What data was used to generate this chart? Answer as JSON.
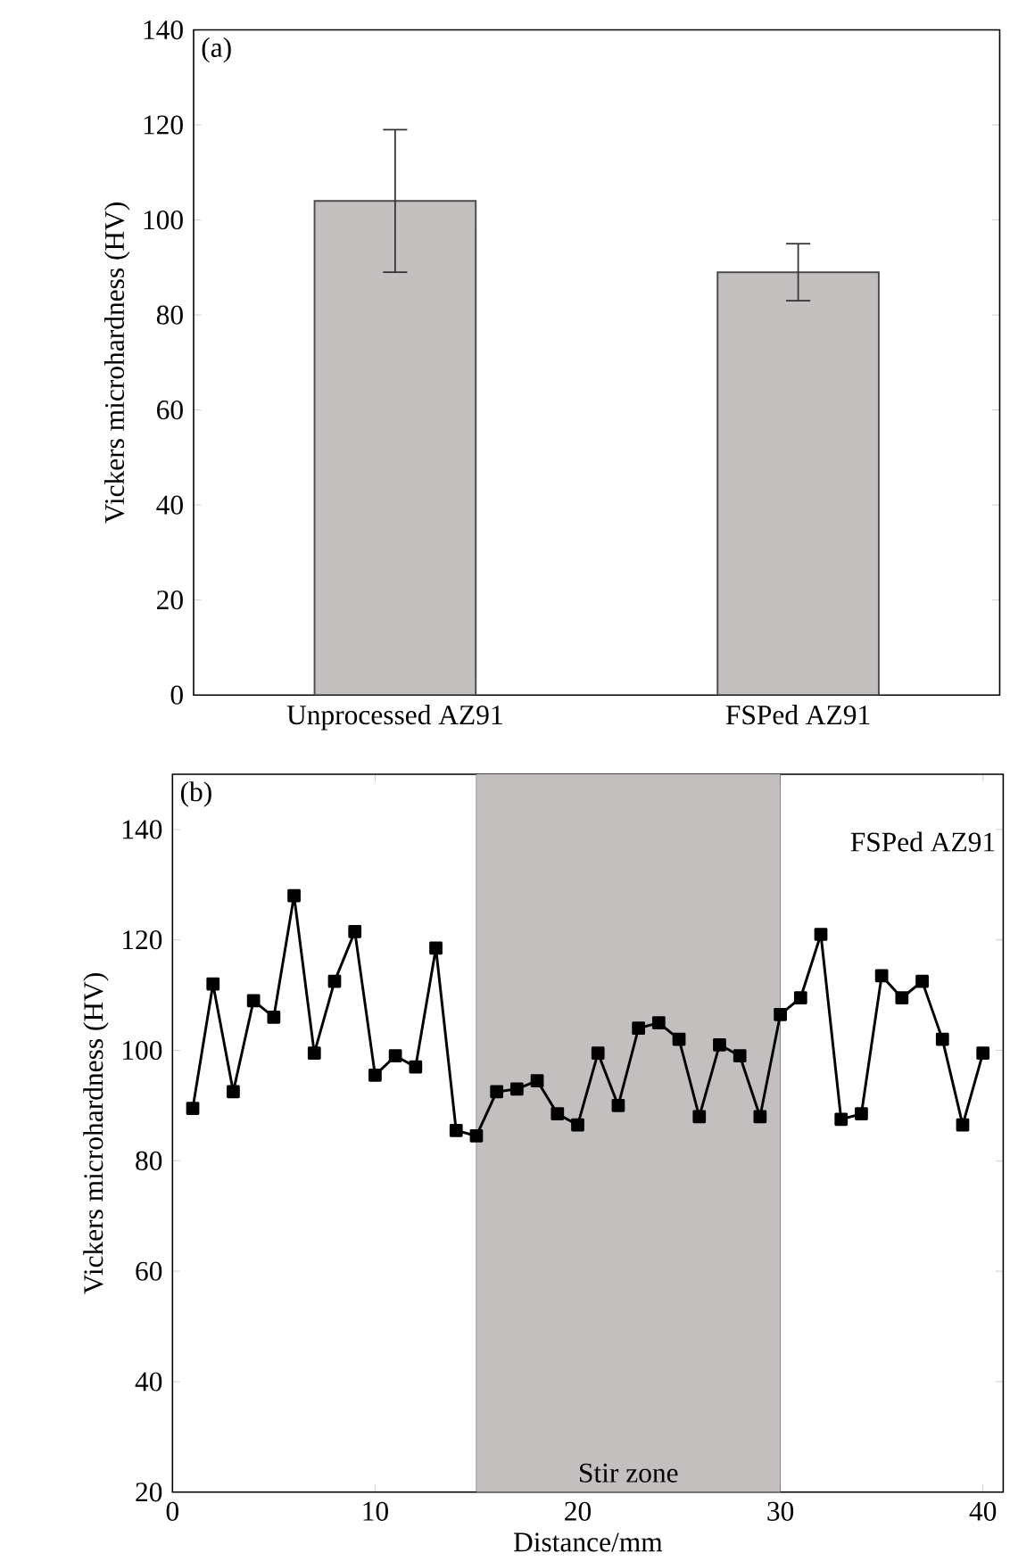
{
  "chart_data": [
    {
      "type": "bar",
      "categories": [
        "Unprocessed AZ91",
        "FSPed AZ91"
      ],
      "values": [
        104,
        89
      ],
      "errors": [
        [
          89,
          119
        ],
        [
          83,
          95
        ]
      ],
      "color": "#c4bfbf",
      "ylabel": "Vickers microhardness (HV)",
      "ylim": [
        0,
        140
      ],
      "yticks": [
        0,
        20,
        40,
        60,
        80,
        100,
        120,
        140
      ],
      "annotations": [
        "(a)"
      ]
    },
    {
      "type": "line",
      "xlabel": "Distance/mm",
      "ylabel": "Vickers microhardness (HV)",
      "marker": "square",
      "color": "#000000",
      "x": [
        1,
        2,
        3,
        4,
        5,
        6,
        7,
        8,
        9,
        10,
        11,
        12,
        13,
        14,
        15,
        16,
        17,
        18,
        19,
        20,
        21,
        22,
        23,
        24,
        25,
        26,
        27,
        28,
        29,
        30,
        31,
        32,
        33,
        34,
        35,
        36,
        37,
        38,
        39,
        40
      ],
      "values": [
        89.5,
        112,
        92.5,
        109,
        106,
        128,
        99.5,
        112.5,
        121.5,
        95.5,
        99,
        97,
        118.5,
        85.5,
        84.5,
        92.5,
        93,
        94.5,
        88.5,
        86.5,
        99.5,
        90,
        104,
        105,
        102,
        88,
        101,
        99,
        88,
        106.5,
        109.5,
        121,
        87.5,
        88.5,
        113.5,
        109.5,
        112.5,
        102,
        86.5,
        99.5
      ],
      "xlim": [
        0,
        41
      ],
      "xticks": [
        0,
        10,
        20,
        30,
        40
      ],
      "ylim": [
        20,
        150
      ],
      "yticks": [
        20,
        40,
        60,
        80,
        100,
        120,
        140
      ],
      "bands": [
        {
          "axis": "x",
          "from": 15,
          "to": 30,
          "label": "Stir zone",
          "color": "#c4bfbf"
        }
      ],
      "annotations": [
        "(b)",
        "FSPed AZ91"
      ]
    }
  ]
}
